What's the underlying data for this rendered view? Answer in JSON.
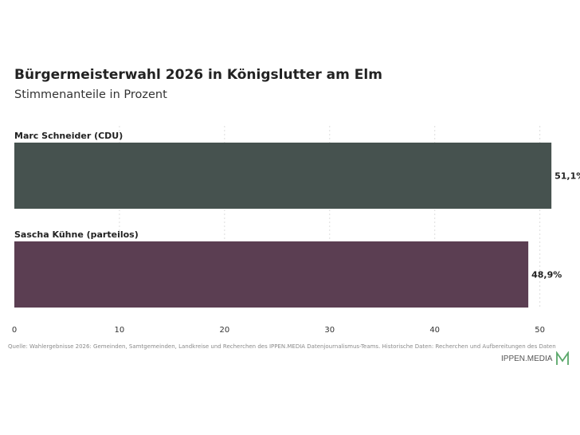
{
  "chart_data": {
    "type": "bar",
    "orientation": "horizontal",
    "title": "Bürgermeisterwahl 2026 in Königslutter am Elm",
    "subtitle": "Stimmenanteile in Prozent",
    "categories": [
      "Marc Schneider (CDU)",
      "Sascha Kühne (parteilos)"
    ],
    "values": [
      51.1,
      48.9
    ],
    "value_labels": [
      "51,1%",
      "48,9%"
    ],
    "colors": [
      "#46524f",
      "#5b3e52"
    ],
    "xlim": [
      0,
      52
    ],
    "xticks": [
      0,
      10,
      20,
      30,
      40,
      50
    ],
    "xtick_labels": [
      "0",
      "10",
      "20",
      "30",
      "40",
      "50"
    ],
    "grid": "vertical-dashed",
    "xlabel": "",
    "ylabel": ""
  },
  "source": "Quelle: Wahlergebnisse 2026: Gemeinden, Samtgemeinden, Landkreise und Recherchen des IPPEN.MEDIA Datenjournalismus-Teams. Historische Daten: Recherchen und Aufbereitungen des Daten",
  "logo": {
    "text": "IPPEN.MEDIA",
    "accent": "#5aa86a"
  }
}
